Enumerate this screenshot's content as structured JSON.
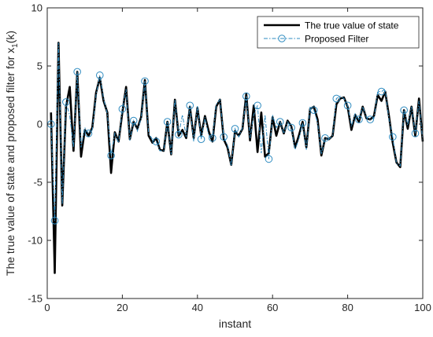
{
  "chart_data": {
    "type": "line",
    "xlabel": "instant",
    "ylabel_main": "The true value of state and proposed filter for x",
    "ylabel_sub": "1",
    "ylabel_tail": "(k)",
    "xlim": [
      0,
      100
    ],
    "ylim": [
      -15,
      10
    ],
    "xticks": [
      0,
      20,
      40,
      60,
      80,
      100
    ],
    "yticks": [
      -15,
      -10,
      -5,
      0,
      5,
      10
    ],
    "grid": false,
    "legend_position": "top-right",
    "colors": {
      "true_state": "#000000",
      "filter": "#2e8bc0",
      "axes": "#262626"
    },
    "x": [
      1,
      2,
      3,
      4,
      5,
      6,
      7,
      8,
      9,
      10,
      11,
      12,
      13,
      14,
      15,
      16,
      17,
      18,
      19,
      20,
      21,
      22,
      23,
      24,
      25,
      26,
      27,
      28,
      29,
      30,
      31,
      32,
      33,
      34,
      35,
      36,
      37,
      38,
      39,
      40,
      41,
      42,
      43,
      44,
      45,
      46,
      47,
      48,
      49,
      50,
      51,
      52,
      53,
      54,
      55,
      56,
      57,
      58,
      59,
      60,
      61,
      62,
      63,
      64,
      65,
      66,
      67,
      68,
      69,
      70,
      71,
      72,
      73,
      74,
      75,
      76,
      77,
      78,
      79,
      80,
      81,
      82,
      83,
      84,
      85,
      86,
      87,
      88,
      89,
      90,
      91,
      92,
      93,
      94,
      95,
      96,
      97,
      98,
      99,
      100
    ],
    "series": [
      {
        "name": "The true value of state",
        "values": [
          1.0,
          -12.8,
          7.0,
          -7.0,
          1.5,
          3.2,
          -2.3,
          4.5,
          -2.8,
          -0.5,
          -1.0,
          -0.3,
          2.7,
          4.0,
          2.0,
          1.0,
          -4.2,
          -0.7,
          -1.5,
          1.0,
          3.2,
          -1.3,
          0.2,
          -0.4,
          0.6,
          3.8,
          -1.0,
          -1.6,
          -1.2,
          -2.2,
          -2.3,
          0.2,
          -2.6,
          2.1,
          -1.0,
          -0.5,
          -1.2,
          1.5,
          -1.2,
          1.4,
          -1.0,
          0.7,
          -0.6,
          -1.5,
          1.5,
          2.1,
          -1.3,
          -2.0,
          -3.5,
          -0.6,
          -1.0,
          -0.4,
          2.6,
          -1.4,
          1.6,
          -2.4,
          1.0,
          -2.8,
          -2.5,
          0.6,
          -1.0,
          0.2,
          -0.8,
          0.3,
          -0.2,
          -2.0,
          -1.0,
          0.2,
          -2.0,
          1.3,
          1.5,
          0.4,
          -2.7,
          -1.2,
          -1.3,
          -1.0,
          1.7,
          2.2,
          2.3,
          1.5,
          -0.5,
          0.8,
          0.2,
          1.5,
          0.5,
          0.4,
          0.7,
          2.5,
          2.0,
          2.8,
          0.7,
          -1.6,
          -3.3,
          -3.7,
          1.2,
          -0.4,
          1.5,
          -1.0,
          2.2,
          -1.5
        ]
      },
      {
        "name": "Proposed Filter",
        "values": [
          0.0,
          -8.3,
          7.0,
          -6.9,
          1.9,
          0.7,
          -2.0,
          4.5,
          -2.0,
          -0.3,
          -0.8,
          -0.5,
          2.5,
          4.2,
          2.2,
          0.9,
          -2.7,
          -0.8,
          -1.6,
          1.3,
          3.0,
          -1.4,
          0.3,
          -0.6,
          0.5,
          3.7,
          -0.8,
          -1.3,
          -1.5,
          -2.3,
          -2.3,
          0.2,
          -2.6,
          2.1,
          -0.9,
          0.8,
          -1.1,
          1.6,
          -1.5,
          1.6,
          -1.3,
          0.6,
          -1.0,
          -1.2,
          1.7,
          2.1,
          -1.1,
          -1.8,
          -3.6,
          -0.4,
          -1.1,
          -0.3,
          2.4,
          -1.2,
          0.8,
          1.6,
          -2.5,
          0.8,
          -3.0,
          0.8,
          -0.3,
          0.2,
          -0.8,
          0.2,
          -0.3,
          -2.2,
          -1.3,
          0.1,
          -2.2,
          1.5,
          1.2,
          0.1,
          -2.6,
          -1.2,
          -1.3,
          -1.0,
          2.2,
          2.4,
          2.2,
          1.6,
          -0.2,
          0.9,
          0.4,
          1.5,
          0.6,
          0.4,
          0.5,
          2.8,
          2.8,
          3.0,
          0.4,
          -1.1,
          -3.4,
          -3.6,
          1.2,
          -0.1,
          1.5,
          -0.8,
          2.0,
          -1.5
        ]
      }
    ]
  }
}
